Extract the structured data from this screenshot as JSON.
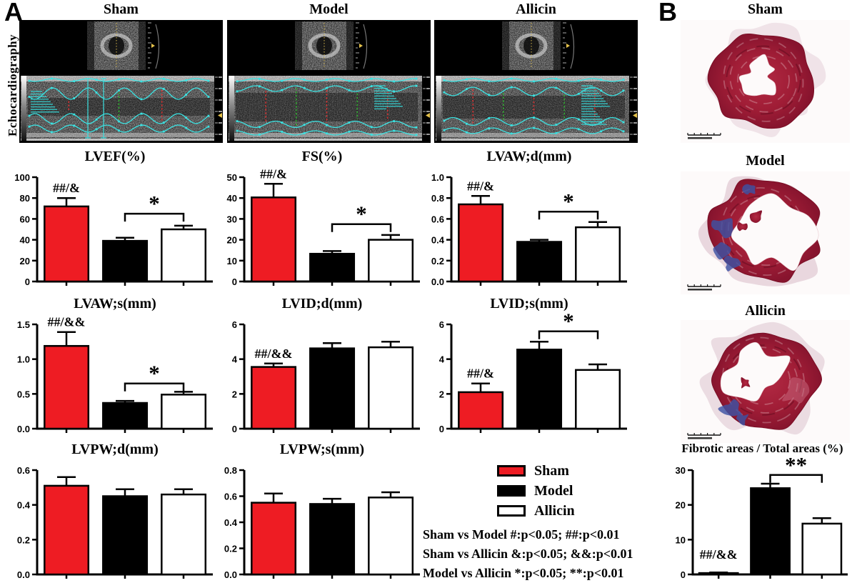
{
  "figure": {
    "panel_a_label": "A",
    "panel_b_label": "B",
    "echo_axis_label": "Echocardiography",
    "echo_column_titles": [
      "Sham",
      "Model",
      "Allicin"
    ],
    "histology_titles": [
      "Sham",
      "Model",
      "Allicin"
    ],
    "legend": {
      "items": [
        {
          "label": "Sham",
          "color": "#ee1c23"
        },
        {
          "label": "Model",
          "color": "#000000"
        },
        {
          "label": "Allicin",
          "color": "#ffffff"
        }
      ]
    },
    "stats_lines": [
      "Sham vs Model #:p<0.05; ##:p<0.01",
      "Sham vs Allicin &:p<0.05; &&:p<0.01",
      "Model vs Allicin *:p<0.05; **:p<0.01"
    ]
  },
  "chart_data": [
    {
      "type": "bar",
      "title": "LVEF(%)",
      "categories": [
        "Sham",
        "Model",
        "Allicin"
      ],
      "values": [
        72,
        39,
        50
      ],
      "errors": [
        8,
        3,
        3.5
      ],
      "ylim": [
        0,
        100
      ],
      "ytick": 20,
      "decimals": 0,
      "annotations": {
        "sham": "##/&",
        "bracket": {
          "between": [
            "Model",
            "Allicin"
          ],
          "label": "*",
          "y": 65
        }
      }
    },
    {
      "type": "bar",
      "title": "FS(%)",
      "categories": [
        "Sham",
        "Model",
        "Allicin"
      ],
      "values": [
        40.3,
        13.3,
        20
      ],
      "errors": [
        6.5,
        1.3,
        2.3
      ],
      "ylim": [
        0,
        50
      ],
      "ytick": 10,
      "decimals": 0,
      "annotations": {
        "sham": "##/&",
        "bracket": {
          "between": [
            "Model",
            "Allicin"
          ],
          "label": "*",
          "y": 27.5
        }
      }
    },
    {
      "type": "bar",
      "title": "LVAW;d(mm)",
      "categories": [
        "Sham",
        "Model",
        "Allicin"
      ],
      "values": [
        0.74,
        0.38,
        0.52
      ],
      "errors": [
        0.08,
        0.02,
        0.05
      ],
      "ylim": [
        0,
        1.0
      ],
      "ytick": 0.2,
      "decimals": 1,
      "annotations": {
        "sham": "##/&",
        "bracket": {
          "between": [
            "Model",
            "Allicin"
          ],
          "label": "*",
          "y": 0.67
        }
      }
    },
    {
      "type": "bar",
      "title": "LVAW;s(mm)",
      "categories": [
        "Sham",
        "Model",
        "Allicin"
      ],
      "values": [
        1.19,
        0.37,
        0.49
      ],
      "errors": [
        0.2,
        0.03,
        0.04
      ],
      "ylim": [
        0,
        1.5
      ],
      "ytick": 0.5,
      "decimals": 1,
      "annotations": {
        "sham": "##/&&",
        "bracket": {
          "between": [
            "Model",
            "Allicin"
          ],
          "label": "*",
          "y": 0.65
        }
      }
    },
    {
      "type": "bar",
      "title": "LVID;d(mm)",
      "categories": [
        "Sham",
        "Model",
        "Allicin"
      ],
      "values": [
        3.55,
        4.62,
        4.68
      ],
      "errors": [
        0.2,
        0.3,
        0.32
      ],
      "ylim": [
        0,
        6
      ],
      "ytick": 2,
      "decimals": 0,
      "annotations": {
        "sham": "##/&&",
        "bracket": null
      }
    },
    {
      "type": "bar",
      "title": "LVID;s(mm)",
      "categories": [
        "Sham",
        "Model",
        "Allicin"
      ],
      "values": [
        2.1,
        4.55,
        3.38
      ],
      "errors": [
        0.5,
        0.45,
        0.32
      ],
      "ylim": [
        0,
        6
      ],
      "ytick": 2,
      "decimals": 0,
      "annotations": {
        "sham": "##/&",
        "bracket": {
          "between": [
            "Model",
            "Allicin"
          ],
          "label": "*",
          "y": 5.6
        }
      }
    },
    {
      "type": "bar",
      "title": "LVPW;d(mm)",
      "categories": [
        "Sham",
        "Model",
        "Allicin"
      ],
      "values": [
        0.51,
        0.45,
        0.46
      ],
      "errors": [
        0.05,
        0.04,
        0.03
      ],
      "ylim": [
        0,
        0.6
      ],
      "ytick": 0.2,
      "decimals": 1,
      "annotations": {
        "sham": null,
        "bracket": null
      }
    },
    {
      "type": "bar",
      "title": "LVPW;s(mm)",
      "categories": [
        "Sham",
        "Model",
        "Allicin"
      ],
      "values": [
        0.55,
        0.54,
        0.59
      ],
      "errors": [
        0.07,
        0.04,
        0.04
      ],
      "ylim": [
        0,
        0.8
      ],
      "ytick": 0.2,
      "decimals": 1,
      "annotations": {
        "sham": null,
        "bracket": null
      }
    },
    {
      "type": "bar",
      "title": "Fibrotic areas / Total areas (%)",
      "categories": [
        "Sham",
        "Model",
        "Allicin"
      ],
      "values": [
        0.4,
        24.8,
        14.6
      ],
      "errors": [
        0.15,
        1.3,
        1.6
      ],
      "ylim": [
        0,
        30
      ],
      "ytick": 10,
      "decimals": 0,
      "annotations": {
        "sham": "##/&&",
        "bracket": {
          "between": [
            "Model",
            "Allicin"
          ],
          "label": "**",
          "y": 28.6
        }
      }
    }
  ]
}
